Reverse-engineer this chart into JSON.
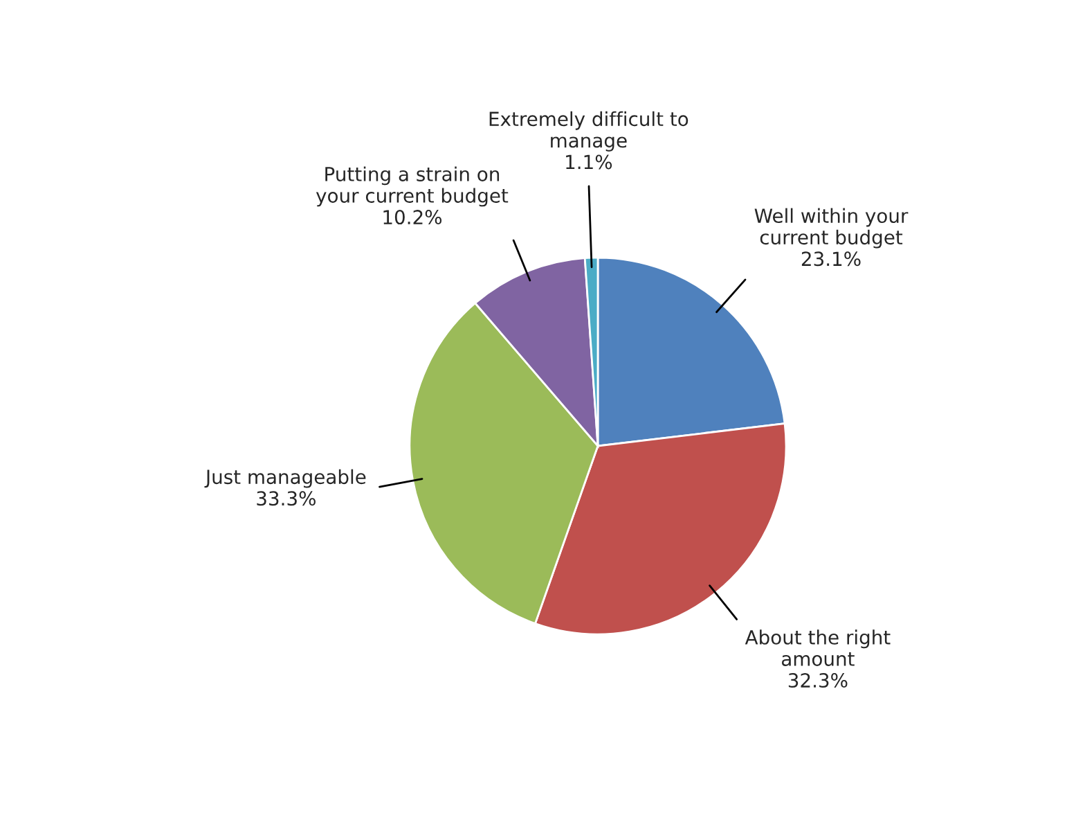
{
  "chart_data": {
    "type": "pie",
    "categories": [
      "Well within your\ncurrent budget",
      "About the right\namount",
      "Just manageable",
      "Putting a strain on\nyour current budget",
      "Extremely difficult to\nmanage"
    ],
    "values": [
      23.1,
      32.3,
      33.3,
      10.2,
      1.1
    ],
    "colors": [
      "#4f81bd",
      "#c0504d",
      "#9bbb59",
      "#8064a2",
      "#4bacc6"
    ],
    "value_labels": [
      "23.1%",
      "32.3%",
      "33.3%",
      "10.2%",
      "1.1%"
    ]
  }
}
